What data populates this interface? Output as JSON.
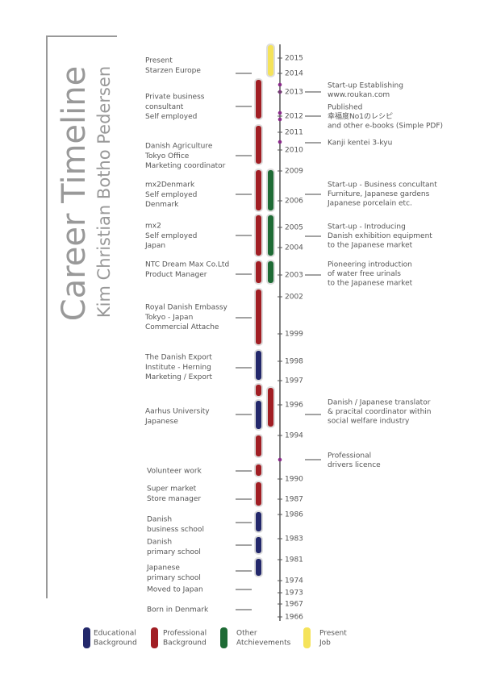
{
  "header": {
    "title": "Career Timeline",
    "name": "Kim Christian Botho Pedersen"
  },
  "years": [
    "2015",
    "2014",
    "2013",
    "2012",
    "2011",
    "2010",
    "2009",
    "2006",
    "2005",
    "2004",
    "2003",
    "2002",
    "1999",
    "1998",
    "1997",
    "1996",
    "1994",
    "1990",
    "1987",
    "1986",
    "1983",
    "1981",
    "1974",
    "1973",
    "1967",
    "1966"
  ],
  "left_entries": [
    {
      "lines": [
        "Present",
        "Starzen Europe"
      ]
    },
    {
      "lines": [
        "Private business",
        "consultant",
        "Self employed"
      ]
    },
    {
      "lines": [
        "Danish Agriculture",
        "Tokyo Office",
        "Marketing coordinator"
      ]
    },
    {
      "lines": [
        "mx2Denmark",
        "Self employed",
        "Denmark"
      ]
    },
    {
      "lines": [
        "mx2",
        "Self employed",
        "Japan"
      ]
    },
    {
      "lines": [
        "NTC Dream Max Co.Ltd",
        "Product Manager"
      ]
    },
    {
      "lines": [
        "Royal Danish Embassy",
        "Tokyo - Japan",
        "Commercial Attache"
      ]
    },
    {
      "lines": [
        "The Danish Export",
        "Institute - Herning",
        "Marketing / Export"
      ]
    },
    {
      "lines": [
        "Aarhus University",
        "Japanese"
      ]
    },
    {
      "lines": [
        "Volunteer work"
      ]
    },
    {
      "lines": [
        "Super market",
        "Store manager"
      ]
    },
    {
      "lines": [
        "Danish",
        "business school"
      ]
    },
    {
      "lines": [
        "Danish",
        "primary school"
      ]
    },
    {
      "lines": [
        "Japanese",
        "primary school"
      ]
    },
    {
      "lines": [
        "Moved to Japan"
      ]
    },
    {
      "lines": [
        "Born in Denmark"
      ]
    }
  ],
  "right_entries": [
    {
      "lines": [
        "Start-up Establishing",
        "www.roukan.com"
      ]
    },
    {
      "lines": [
        "Published",
        "幸福度No1のレシピ",
        "and other e-books (Simple PDF)"
      ]
    },
    {
      "lines": [
        "Kanji kentei 3-kyu"
      ]
    },
    {
      "lines": [
        "Start-up - Business concultant",
        "Furniture, Japanese gardens",
        "Japanese porcelain etc."
      ]
    },
    {
      "lines": [
        "Start-up - Introducing",
        "Danish exhibition equipment",
        "to the Japanese market"
      ]
    },
    {
      "lines": [
        "Pioneering introduction",
        "of water free urinals",
        "to the Japanese market"
      ]
    },
    {
      "lines": [
        "Danish / Japanese translator",
        "& pracital coordinator within",
        "social welfare industry"
      ]
    },
    {
      "lines": [
        "Professional",
        "drivers licence"
      ]
    }
  ],
  "legend": [
    {
      "lines": [
        "Educational",
        "Background"
      ]
    },
    {
      "lines": [
        "Professional",
        "Background"
      ]
    },
    {
      "lines": [
        "Other",
        "Atchievements"
      ]
    },
    {
      "lines": [
        "Present",
        "Job"
      ]
    }
  ]
}
